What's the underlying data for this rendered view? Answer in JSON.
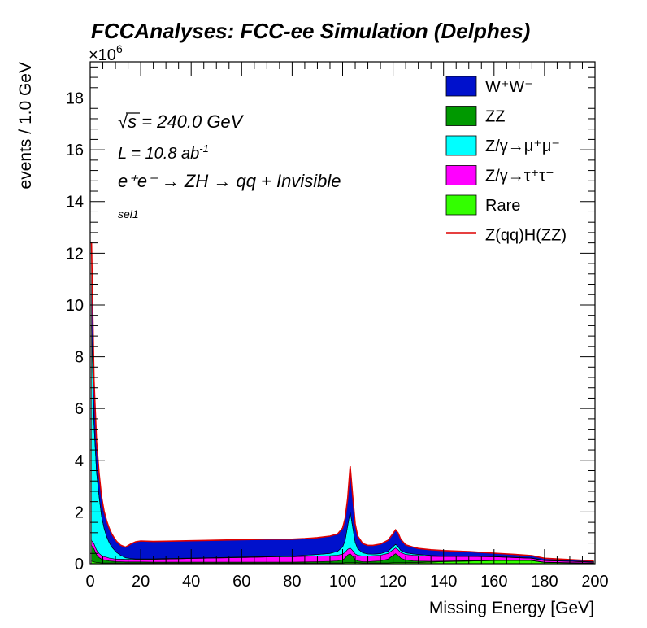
{
  "chart_data": {
    "type": "area",
    "stacked": true,
    "title": "FCCAnalyses: FCC-ee Simulation (Delphes)",
    "xlabel": "Missing Energy [GeV]",
    "ylabel": "events / 1.0 GeV",
    "y_multiplier_label": "×10",
    "y_multiplier_exp": "6",
    "xlim": [
      0,
      200
    ],
    "ylim": [
      0,
      19.4
    ],
    "x_ticks": [
      "0",
      "20",
      "40",
      "60",
      "80",
      "100",
      "120",
      "140",
      "160",
      "180",
      "200"
    ],
    "y_ticks": [
      "0",
      "2",
      "4",
      "6",
      "8",
      "10",
      "12",
      "14",
      "16",
      "18"
    ],
    "annotations": {
      "sqrt_s_symbol": "√",
      "sqrt_s_text": "s = 240.0 GeV",
      "lumi_text": "L = 10.8 ab",
      "lumi_exp": "-1",
      "process_text": "e⁺e⁻ → ZH → qq + Invisible",
      "selection": "sel1"
    },
    "x": [
      0.5,
      1.5,
      2.5,
      3.5,
      4.5,
      5.5,
      6.5,
      7.5,
      8.5,
      9.5,
      10.5,
      12,
      14,
      16,
      18,
      20,
      25,
      30,
      40,
      50,
      60,
      70,
      80,
      85,
      90,
      95,
      98,
      100,
      101,
      102,
      103,
      104,
      105,
      106,
      108,
      110,
      112,
      115,
      118,
      120,
      121,
      122,
      123,
      125,
      128,
      130,
      135,
      140,
      150,
      160,
      170,
      175,
      180,
      190,
      199.5
    ],
    "series": [
      {
        "name": "Rare",
        "color": "#33ff00",
        "values": [
          0.1,
          0.07,
          0.05,
          0.04,
          0.03,
          0.03,
          0.03,
          0.03,
          0.03,
          0.03,
          0.03,
          0.03,
          0.03,
          0.03,
          0.03,
          0.03,
          0.03,
          0.03,
          0.03,
          0.03,
          0.03,
          0.03,
          0.03,
          0.03,
          0.03,
          0.03,
          0.03,
          0.03,
          0.04,
          0.04,
          0.04,
          0.04,
          0.04,
          0.04,
          0.03,
          0.03,
          0.03,
          0.03,
          0.03,
          0.04,
          0.04,
          0.04,
          0.04,
          0.04,
          0.05,
          0.05,
          0.06,
          0.08,
          0.1,
          0.12,
          0.12,
          0.12,
          0.05,
          0.03,
          0.02
        ]
      },
      {
        "name": "ZZ",
        "color": "#009900",
        "values": [
          0.6,
          0.5,
          0.3,
          0.2,
          0.15,
          0.12,
          0.1,
          0.08,
          0.07,
          0.06,
          0.05,
          0.05,
          0.04,
          0.04,
          0.04,
          0.04,
          0.03,
          0.03,
          0.03,
          0.03,
          0.03,
          0.03,
          0.03,
          0.04,
          0.05,
          0.06,
          0.08,
          0.12,
          0.18,
          0.3,
          0.35,
          0.25,
          0.12,
          0.07,
          0.05,
          0.05,
          0.06,
          0.08,
          0.15,
          0.28,
          0.35,
          0.28,
          0.18,
          0.1,
          0.06,
          0.05,
          0.03,
          0.02,
          0.02,
          0.01,
          0.01,
          0.01,
          0.01,
          0.01,
          0.01
        ]
      },
      {
        "name": "Z/γ→τ⁺τ⁻",
        "color": "#ff00ff",
        "values": [
          0.2,
          0.2,
          0.18,
          0.16,
          0.14,
          0.12,
          0.12,
          0.11,
          0.1,
          0.1,
          0.1,
          0.1,
          0.1,
          0.1,
          0.1,
          0.1,
          0.11,
          0.12,
          0.14,
          0.16,
          0.18,
          0.2,
          0.21,
          0.22,
          0.22,
          0.22,
          0.22,
          0.22,
          0.22,
          0.22,
          0.22,
          0.22,
          0.22,
          0.22,
          0.22,
          0.22,
          0.22,
          0.22,
          0.22,
          0.22,
          0.22,
          0.22,
          0.22,
          0.22,
          0.22,
          0.22,
          0.2,
          0.18,
          0.16,
          0.14,
          0.1,
          0.08,
          0.06,
          0.05,
          0.03
        ]
      },
      {
        "name": "Z/γ→μ⁺μ⁻",
        "color": "#00ffff",
        "values": [
          8.3,
          4.6,
          3.0,
          2.2,
          1.5,
          1.1,
          0.8,
          0.6,
          0.45,
          0.35,
          0.25,
          0.15,
          0.06,
          0.03,
          0.02,
          0.02,
          0.02,
          0.02,
          0.02,
          0.02,
          0.02,
          0.02,
          0.03,
          0.04,
          0.06,
          0.09,
          0.15,
          0.28,
          0.45,
          0.9,
          1.4,
          0.9,
          0.45,
          0.25,
          0.12,
          0.08,
          0.06,
          0.06,
          0.08,
          0.12,
          0.14,
          0.12,
          0.08,
          0.06,
          0.05,
          0.04,
          0.03,
          0.02,
          0.02,
          0.01,
          0.01,
          0.01,
          0.01,
          0.01,
          0.01
        ]
      },
      {
        "name": "W⁺W⁻",
        "color": "#0011cc",
        "values": [
          3.2,
          1.7,
          1.2,
          0.9,
          0.75,
          0.65,
          0.6,
          0.55,
          0.5,
          0.45,
          0.42,
          0.38,
          0.4,
          0.55,
          0.65,
          0.68,
          0.66,
          0.66,
          0.66,
          0.66,
          0.66,
          0.66,
          0.64,
          0.63,
          0.64,
          0.66,
          0.66,
          0.72,
          0.85,
          1.05,
          1.75,
          1.2,
          0.7,
          0.48,
          0.35,
          0.32,
          0.33,
          0.36,
          0.42,
          0.5,
          0.55,
          0.52,
          0.42,
          0.3,
          0.25,
          0.22,
          0.21,
          0.2,
          0.16,
          0.12,
          0.1,
          0.08,
          0.07,
          0.05,
          0.03
        ]
      },
      {
        "name": "Z(qq)H(ZZ)",
        "color": "#dd0000",
        "style": "line",
        "values": [
          0.02,
          0.02,
          0.01,
          0.01,
          0.01,
          0.01,
          0.01,
          0.01,
          0.01,
          0.01,
          0.01,
          0.01,
          0.01,
          0.01,
          0.01,
          0.01,
          0.01,
          0.01,
          0.01,
          0.01,
          0.01,
          0.01,
          0.01,
          0.01,
          0.01,
          0.01,
          0.01,
          0.01,
          0.01,
          0.01,
          0.01,
          0.01,
          0.01,
          0.01,
          0.01,
          0.01,
          0.01,
          0.01,
          0.01,
          0.01,
          0.01,
          0.01,
          0.01,
          0.01,
          0.01,
          0.01,
          0.01,
          0.01,
          0.01,
          0.01,
          0.01,
          0.01,
          0.01,
          0.01,
          0.01
        ]
      }
    ],
    "legend": {
      "placement": "top-right",
      "entries": [
        {
          "label": "W⁺W⁻",
          "color": "#0011cc",
          "kind": "box"
        },
        {
          "label": "ZZ",
          "color": "#009900",
          "kind": "box"
        },
        {
          "label": "Z/γ→μ⁺μ⁻",
          "color": "#00ffff",
          "kind": "box"
        },
        {
          "label": "Z/γ→τ⁺τ⁻",
          "color": "#ff00ff",
          "kind": "box"
        },
        {
          "label": "Rare",
          "color": "#33ff00",
          "kind": "box"
        },
        {
          "label": "Z(qq)H(ZZ)",
          "color": "#dd0000",
          "kind": "line"
        }
      ]
    }
  }
}
